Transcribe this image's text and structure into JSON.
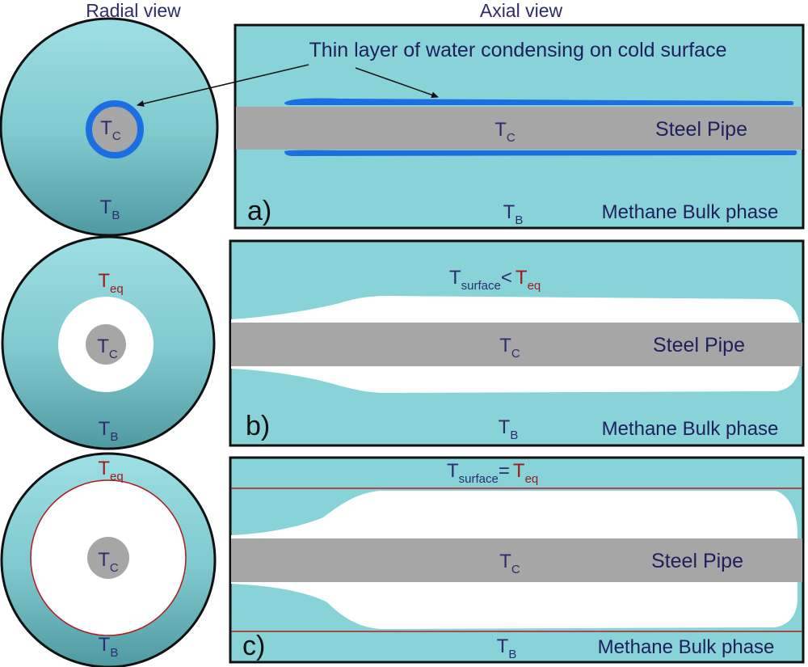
{
  "headers": {
    "radial": "Radial view",
    "axial": "Axial view"
  },
  "colors": {
    "fluid": "#88d3d8",
    "fluid_dark": "#4f9aa1",
    "pipe": "#a6a6a6",
    "water_film": "#1b6fe0",
    "hydrate": "#ffffff",
    "eq_line": "#b01c1c",
    "text": "#2c2c6e",
    "text_eq": "#9e1b1b"
  },
  "temps": {
    "cold": {
      "main": "T",
      "sub": "C"
    },
    "bulk": {
      "main": "T",
      "sub": "B"
    },
    "eq": {
      "main": "T",
      "sub": "eq"
    },
    "surface": {
      "main": "T",
      "sub": "surface"
    }
  },
  "relations": {
    "less": "<",
    "equal": "="
  },
  "annotation": "Thin layer of water condensing on cold surface",
  "pipe_label": "Steel Pipe",
  "bulk_label": "Methane Bulk phase",
  "panels": [
    {
      "id": "a",
      "label": "a)"
    },
    {
      "id": "b",
      "label": "b)"
    },
    {
      "id": "c",
      "label": "c)"
    }
  ]
}
